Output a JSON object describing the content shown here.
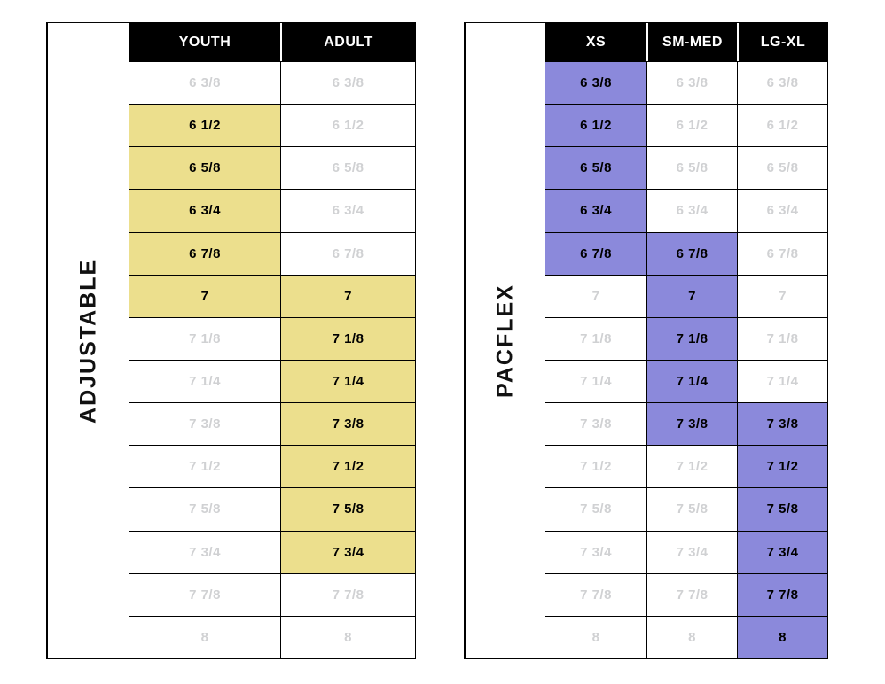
{
  "page": {
    "background": "#ffffff",
    "description": "Hat size chart with two fit tables"
  },
  "colors": {
    "header_bg": "#000000",
    "header_text": "#ffffff",
    "grid_border": "#000000",
    "muted_size_text": "#d0d1d3",
    "active_size_text": "#000000",
    "adjustable_highlight": "#ecdf8d",
    "pacflex_highlight": "#8b89db"
  },
  "chart_data": [
    {
      "type": "table",
      "title": "ADJUSTABLE",
      "columns": [
        "YOUTH",
        "ADULT"
      ],
      "rows": [
        "6 3/8",
        "6 1/2",
        "6 5/8",
        "6 3/4",
        "6 7/8",
        "7",
        "7 1/8",
        "7 1/4",
        "7 3/8",
        "7 1/2",
        "7 5/8",
        "7 3/4",
        "7 7/8",
        "8"
      ],
      "highlighted": {
        "YOUTH": [
          "6 1/2",
          "6 5/8",
          "6 3/4",
          "6 7/8",
          "7"
        ],
        "ADULT": [
          "7",
          "7 1/8",
          "7 1/4",
          "7 3/8",
          "7 1/2",
          "7 5/8",
          "7 3/4"
        ]
      },
      "highlight_color": "#ecdf8d"
    },
    {
      "type": "table",
      "title": "PACFLEX",
      "columns": [
        "XS",
        "SM-MED",
        "LG-XL"
      ],
      "rows": [
        "6 3/8",
        "6 1/2",
        "6 5/8",
        "6 3/4",
        "6 7/8",
        "7",
        "7 1/8",
        "7 1/4",
        "7 3/8",
        "7 1/2",
        "7 5/8",
        "7 3/4",
        "7 7/8",
        "8"
      ],
      "highlighted": {
        "XS": [
          "6 3/8",
          "6 1/2",
          "6 5/8",
          "6 3/4",
          "6 7/8"
        ],
        "SM-MED": [
          "6 7/8",
          "7",
          "7 1/8",
          "7 1/4",
          "7 3/8"
        ],
        "LG-XL": [
          "7 3/8",
          "7 1/2",
          "7 5/8",
          "7 3/4",
          "7 7/8",
          "8"
        ]
      },
      "highlight_color": "#8b89db"
    }
  ]
}
